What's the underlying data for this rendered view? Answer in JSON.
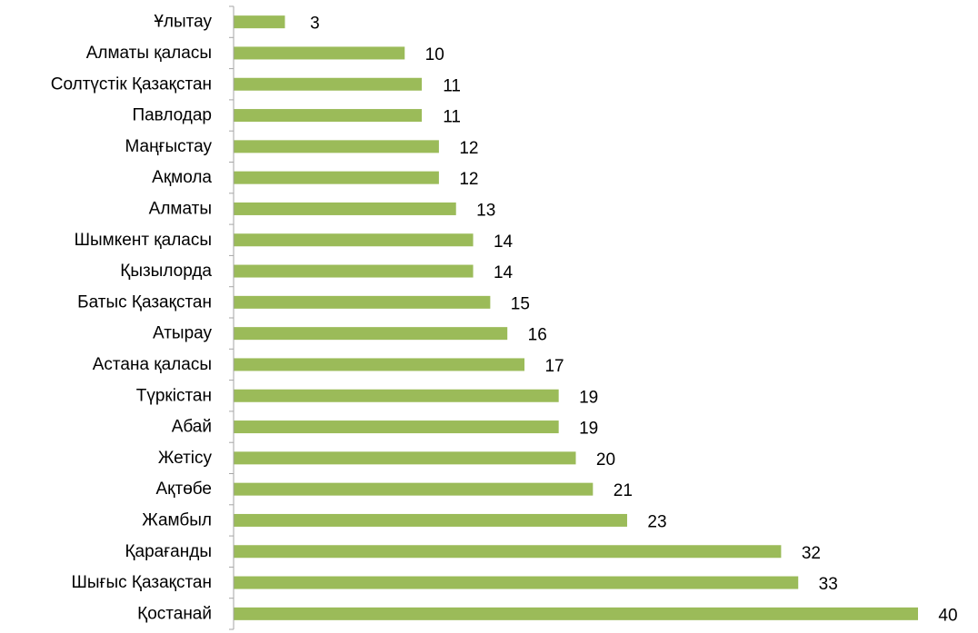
{
  "chart_data": {
    "type": "bar",
    "orientation": "horizontal",
    "categories": [
      "Ұлытау",
      "Алматы қаласы",
      "Солтүстік Қазақстан",
      "Павлодар",
      "Маңғыстау",
      "Ақмола",
      "Алматы",
      "Шымкент қаласы",
      "Қызылорда",
      "Батыс Қазақстан",
      "Атырау",
      "Астана қаласы",
      "Түркістан",
      "Абай",
      "Жетісу",
      "Ақтөбе",
      "Жамбыл",
      "Қарағанды",
      "Шығыс  Қазақстан",
      "Қостанай"
    ],
    "values": [
      3,
      10,
      11,
      11,
      12,
      12,
      13,
      14,
      14,
      15,
      16,
      17,
      19,
      19,
      20,
      21,
      23,
      32,
      33,
      40
    ],
    "title": "",
    "xlabel": "",
    "ylabel": "",
    "xlim": [
      0,
      40
    ],
    "grid": false,
    "legend": "none",
    "data_labels": true,
    "bar_color": "#9bbb59",
    "axis_color": "#a6a6a6"
  }
}
